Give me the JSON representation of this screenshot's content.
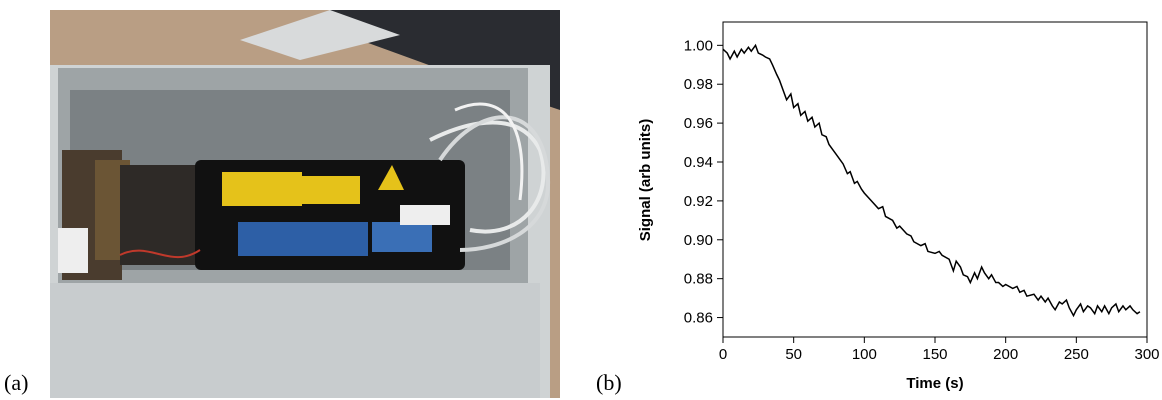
{
  "panel_labels": [
    "(a)",
    "(b)"
  ],
  "chart_data": {
    "type": "line",
    "x_label": "Time (s)",
    "y_label": "Signal (arb units)",
    "color": "#000000",
    "x": [
      0,
      3,
      5,
      8,
      10,
      13,
      15,
      18,
      20,
      23,
      25,
      28,
      30,
      33,
      35,
      38,
      40,
      43,
      45,
      48,
      50,
      53,
      55,
      58,
      60,
      63,
      65,
      68,
      70,
      73,
      75,
      78,
      80,
      83,
      85,
      88,
      90,
      93,
      95,
      98,
      100,
      105,
      110,
      113,
      115,
      120,
      123,
      125,
      130,
      133,
      135,
      140,
      143,
      145,
      150,
      153,
      155,
      160,
      163,
      165,
      168,
      170,
      173,
      175,
      178,
      180,
      183,
      185,
      188,
      190,
      193,
      195,
      198,
      200,
      205,
      208,
      210,
      213,
      215,
      220,
      223,
      225,
      228,
      230,
      233,
      235,
      238,
      240,
      243,
      245,
      248,
      250,
      253,
      255,
      258,
      260,
      263,
      265,
      268,
      270,
      273,
      275,
      278,
      280,
      283,
      285,
      288,
      290,
      293,
      295
    ],
    "values": [
      0.998,
      0.996,
      0.993,
      0.997,
      0.994,
      0.998,
      0.996,
      0.999,
      0.997,
      1.0,
      0.996,
      0.995,
      0.994,
      0.993,
      0.99,
      0.985,
      0.982,
      0.976,
      0.972,
      0.975,
      0.968,
      0.97,
      0.964,
      0.966,
      0.961,
      0.963,
      0.958,
      0.96,
      0.954,
      0.953,
      0.949,
      0.946,
      0.944,
      0.941,
      0.939,
      0.934,
      0.935,
      0.929,
      0.93,
      0.926,
      0.924,
      0.92,
      0.916,
      0.917,
      0.912,
      0.91,
      0.906,
      0.907,
      0.903,
      0.902,
      0.899,
      0.897,
      0.898,
      0.894,
      0.893,
      0.894,
      0.892,
      0.89,
      0.884,
      0.889,
      0.886,
      0.882,
      0.881,
      0.878,
      0.883,
      0.88,
      0.886,
      0.883,
      0.88,
      0.882,
      0.878,
      0.878,
      0.876,
      0.877,
      0.875,
      0.876,
      0.873,
      0.874,
      0.871,
      0.872,
      0.869,
      0.871,
      0.868,
      0.87,
      0.866,
      0.864,
      0.868,
      0.867,
      0.869,
      0.865,
      0.861,
      0.864,
      0.867,
      0.863,
      0.866,
      0.865,
      0.862,
      0.866,
      0.863,
      0.866,
      0.862,
      0.865,
      0.867,
      0.863,
      0.866,
      0.864,
      0.866,
      0.864,
      0.862,
      0.863
    ],
    "xlim": [
      0,
      300
    ],
    "xticks": [
      0,
      50,
      100,
      150,
      200,
      250,
      300
    ],
    "ylim": [
      0.85,
      1.012
    ],
    "yticks": [
      0.86,
      0.88,
      {
        "value": 0.9,
        "label": "0.90"
      },
      0.92,
      0.94,
      0.96,
      0.98,
      {
        "value": 1,
        "label": "1.00"
      }
    ]
  }
}
